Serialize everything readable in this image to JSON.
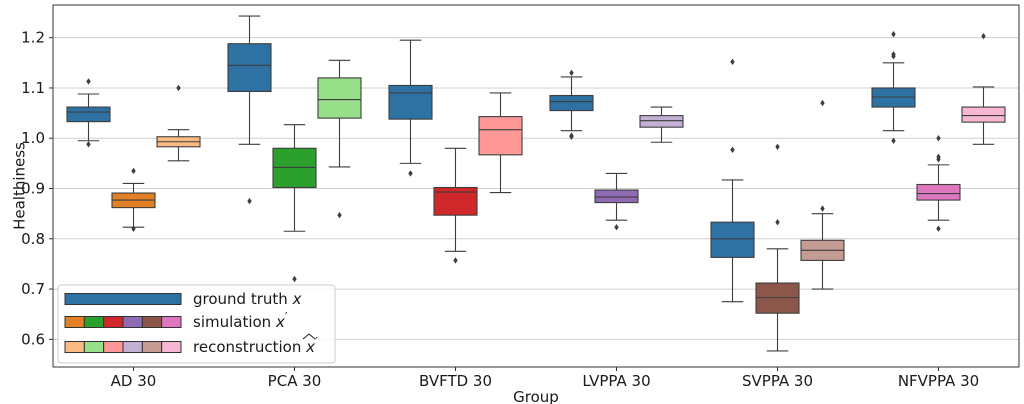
{
  "chart_data": {
    "type": "box",
    "xlabel": "Group",
    "ylabel": "Healthiness",
    "ylim": [
      0.545,
      1.265
    ],
    "yticks": [
      0.6,
      0.7,
      0.8,
      0.9,
      1.0,
      1.1,
      1.2
    ],
    "ytick_labels": [
      "0.6",
      "0.7",
      "0.8",
      "0.9",
      "1.0",
      "1.1",
      "1.2"
    ],
    "grid": "horizontal",
    "legend_position": "lower-left",
    "categories": [
      "AD 30",
      "PCA 30",
      "BVFTD 30",
      "LVPPA 30",
      "SVPPA 30",
      "NFVPPA 30"
    ],
    "series": [
      {
        "role": "ground_truth",
        "colors": [
          "#2e71a3",
          "#2e71a3",
          "#2e71a3",
          "#2e71a3",
          "#2e71a3",
          "#2e71a3"
        ],
        "boxes": [
          {
            "whislo": 0.995,
            "q1": 1.033,
            "med": 1.052,
            "q3": 1.062,
            "whishi": 1.088,
            "fliers": [
              1.113,
              0.988
            ]
          },
          {
            "whislo": 0.988,
            "q1": 1.093,
            "med": 1.145,
            "q3": 1.188,
            "whishi": 1.243,
            "fliers": [
              0.875
            ]
          },
          {
            "whislo": 0.95,
            "q1": 1.038,
            "med": 1.09,
            "q3": 1.105,
            "whishi": 1.195,
            "fliers": [
              0.93
            ]
          },
          {
            "whislo": 1.015,
            "q1": 1.055,
            "med": 1.073,
            "q3": 1.085,
            "whishi": 1.122,
            "fliers": [
              1.13,
              1.005,
              1.003
            ]
          },
          {
            "whislo": 0.675,
            "q1": 0.763,
            "med": 0.8,
            "q3": 0.833,
            "whishi": 0.917,
            "fliers": [
              1.152,
              0.977
            ]
          },
          {
            "whislo": 1.015,
            "q1": 1.062,
            "med": 1.082,
            "q3": 1.1,
            "whishi": 1.15,
            "fliers": [
              1.207,
              1.167,
              1.163,
              0.995
            ]
          }
        ]
      },
      {
        "role": "simulation",
        "colors": [
          "#e28026",
          "#2ca02c",
          "#d0272a",
          "#8f6bb3",
          "#8c564b",
          "#df77c0"
        ],
        "boxes": [
          {
            "whislo": 0.823,
            "q1": 0.862,
            "med": 0.877,
            "q3": 0.891,
            "whishi": 0.91,
            "fliers": [
              0.935,
              0.82
            ]
          },
          {
            "whislo": 0.815,
            "q1": 0.902,
            "med": 0.942,
            "q3": 0.98,
            "whishi": 1.027,
            "fliers": [
              0.72
            ]
          },
          {
            "whislo": 0.775,
            "q1": 0.847,
            "med": 0.893,
            "q3": 0.902,
            "whishi": 0.98,
            "fliers": [
              0.757
            ]
          },
          {
            "whislo": 0.837,
            "q1": 0.872,
            "med": 0.883,
            "q3": 0.897,
            "whishi": 0.93,
            "fliers": [
              0.823
            ]
          },
          {
            "whislo": 0.577,
            "q1": 0.652,
            "med": 0.683,
            "q3": 0.712,
            "whishi": 0.78,
            "fliers": [
              0.983,
              0.833
            ]
          },
          {
            "whislo": 0.837,
            "q1": 0.877,
            "med": 0.89,
            "q3": 0.908,
            "whishi": 0.947,
            "fliers": [
              1.0,
              0.963,
              0.958,
              0.82
            ]
          }
        ]
      },
      {
        "role": "reconstruction",
        "colors": [
          "#fdbb84",
          "#98df8a",
          "#ff9896",
          "#c5b0d5",
          "#c49c94",
          "#f7b6d2"
        ],
        "boxes": [
          {
            "whislo": 0.955,
            "q1": 0.983,
            "med": 0.993,
            "q3": 1.003,
            "whishi": 1.017,
            "fliers": [
              1.1
            ]
          },
          {
            "whislo": 0.943,
            "q1": 1.04,
            "med": 1.077,
            "q3": 1.12,
            "whishi": 1.155,
            "fliers": [
              0.847
            ]
          },
          {
            "whislo": 0.892,
            "q1": 0.967,
            "med": 1.017,
            "q3": 1.043,
            "whishi": 1.09,
            "fliers": []
          },
          {
            "whislo": 0.992,
            "q1": 1.022,
            "med": 1.035,
            "q3": 1.045,
            "whishi": 1.062,
            "fliers": []
          },
          {
            "whislo": 0.7,
            "q1": 0.757,
            "med": 0.777,
            "q3": 0.797,
            "whishi": 0.85,
            "fliers": [
              1.07,
              0.86
            ]
          },
          {
            "whislo": 0.988,
            "q1": 1.032,
            "med": 1.045,
            "q3": 1.062,
            "whishi": 1.102,
            "fliers": [
              1.203
            ]
          }
        ]
      }
    ],
    "legend": [
      {
        "label_text": "ground truth ",
        "label_math": "x",
        "label_prime": "",
        "swatch_colors": [
          "#2e71a3"
        ]
      },
      {
        "label_text": "simulation ",
        "label_math": "x",
        "label_prime": "′",
        "swatch_colors": [
          "#e28026",
          "#2ca02c",
          "#d0272a",
          "#8f6bb3",
          "#8c564b",
          "#df77c0"
        ]
      },
      {
        "label_text": "reconstruction ",
        "label_math": "x",
        "label_prime": "′",
        "swatch_colors": [
          "#fdbb84",
          "#98df8a",
          "#ff9896",
          "#c5b0d5",
          "#c49c94",
          "#f7b6d2"
        ]
      }
    ]
  }
}
